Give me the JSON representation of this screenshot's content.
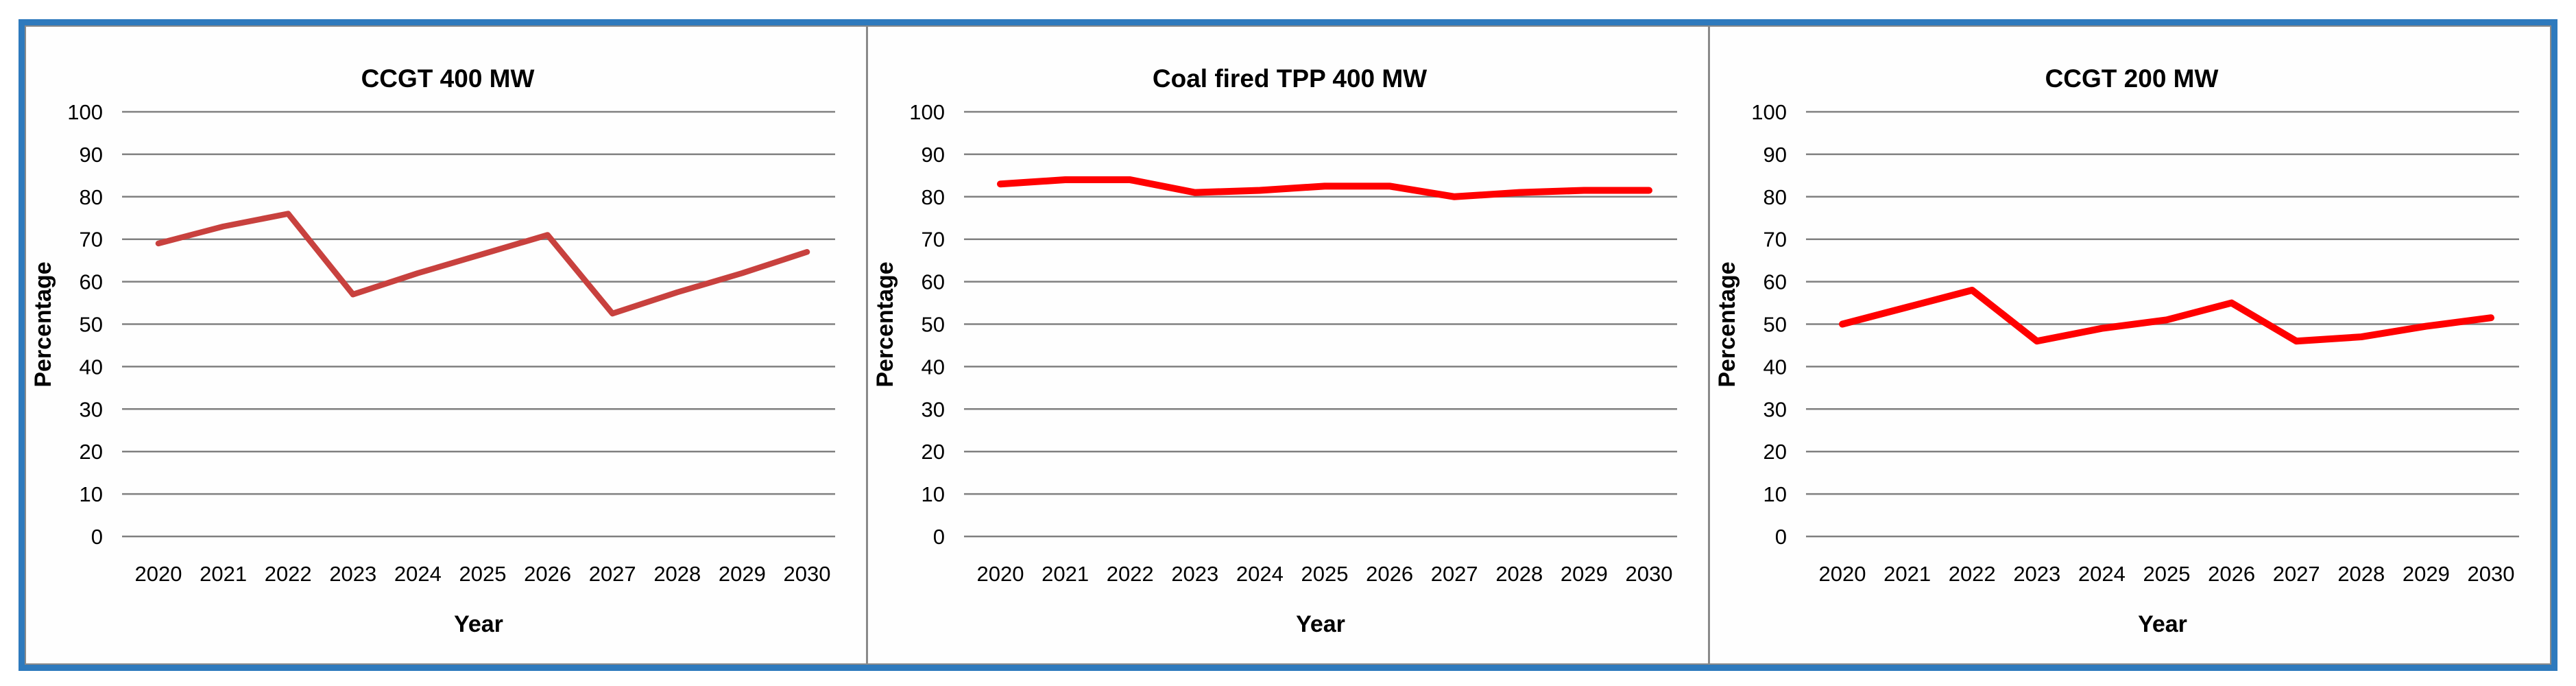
{
  "page": {
    "background": "#ffffff",
    "outer_border_color": "#2e7abd",
    "inner_border_color": "#8a8a8a",
    "gridline_color": "#808080",
    "text_color": "#000000"
  },
  "chart_data": [
    {
      "type": "line",
      "title": "CCGT 400 MW",
      "xlabel": "Year",
      "ylabel": "Percentage",
      "categories": [
        "2020",
        "2021",
        "2022",
        "2023",
        "2024",
        "2025",
        "2026",
        "2027",
        "2028",
        "2029",
        "2030"
      ],
      "values": [
        69,
        73,
        76,
        57,
        62,
        66.5,
        71,
        52.5,
        57.5,
        62,
        67
      ],
      "ylim": [
        0,
        100
      ],
      "yticks": [
        100,
        90,
        80,
        70,
        60,
        50,
        40,
        30,
        20,
        10,
        0
      ],
      "grid": "horizontal",
      "legend": "none",
      "line_color": "#c8413e",
      "line_width": 8.5
    },
    {
      "type": "line",
      "title": "Coal fired TPP 400 MW",
      "xlabel": "Year",
      "ylabel": "Percentage",
      "categories": [
        "2020",
        "2021",
        "2022",
        "2023",
        "2024",
        "2025",
        "2026",
        "2027",
        "2028",
        "2029",
        "2030"
      ],
      "values": [
        83,
        84,
        84,
        81,
        81.5,
        82.5,
        82.5,
        80,
        81,
        81.5,
        81.5
      ],
      "ylim": [
        0,
        100
      ],
      "yticks": [
        100,
        90,
        80,
        70,
        60,
        50,
        40,
        30,
        20,
        10,
        0
      ],
      "grid": "horizontal",
      "legend": "none",
      "line_color": "#ff0000",
      "line_width": 10
    },
    {
      "type": "line",
      "title": "CCGT 200 MW",
      "xlabel": "Year",
      "ylabel": "Percentage",
      "categories": [
        "2020",
        "2021",
        "2022",
        "2023",
        "2024",
        "2025",
        "2026",
        "2027",
        "2028",
        "2029",
        "2030"
      ],
      "values": [
        50,
        54,
        58,
        46,
        49,
        51,
        55,
        46,
        47,
        49.5,
        51.5
      ],
      "ylim": [
        0,
        100
      ],
      "yticks": [
        100,
        90,
        80,
        70,
        60,
        50,
        40,
        30,
        20,
        10,
        0
      ],
      "grid": "horizontal",
      "legend": "none",
      "line_color": "#ff0000",
      "line_width": 10
    }
  ]
}
